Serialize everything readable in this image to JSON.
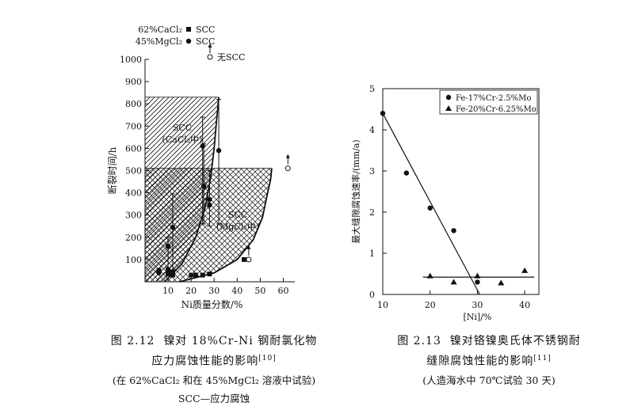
{
  "chart_data": [
    {
      "type": "scatter",
      "figure_label": "图 2.12",
      "title_lines": [
        "镍对 18%Cr-Ni 钢耐氯化物",
        "应力腐蚀性能的影响"
      ],
      "ref": "[10]",
      "note": "(在 62%CaCl₂ 和在 45%MgCl₂ 溶液中试验)",
      "footnote": "SCC—应力腐蚀",
      "xlabel": "Ni质量分数/%",
      "ylabel": "断裂时间/h",
      "xlim": [
        0,
        65
      ],
      "ylim": [
        0,
        1000
      ],
      "xticks": [
        10,
        20,
        30,
        40,
        50,
        60
      ],
      "yticks": [
        100,
        200,
        300,
        400,
        500,
        600,
        700,
        800,
        900,
        1000
      ],
      "legend": [
        {
          "solution": "62%CaCl₂",
          "marker": "square",
          "label": "SCC"
        },
        {
          "solution": "45%MgCl₂",
          "marker": "filled-circle",
          "label": "SCC"
        },
        {
          "solution": "",
          "marker": "open-circle",
          "label": "无SCC"
        }
      ],
      "regions": [
        {
          "label_lines": [
            "SCC",
            "(CaCl₂中)"
          ],
          "hatch": "diagonal",
          "boundary_x": [
            8.5,
            16,
            22,
            26,
            28.5,
            30,
            31,
            32
          ],
          "boundary_y": [
            0,
            80,
            200,
            330,
            470,
            600,
            720,
            830
          ],
          "top": 830
        },
        {
          "label_lines": [
            "SCC",
            "(MgCl₂中)"
          ],
          "hatch": "crosshatch",
          "boundary_x": [
            15,
            30,
            40,
            47,
            51,
            53,
            54.5,
            55
          ],
          "boundary_y": [
            0,
            40,
            100,
            190,
            290,
            390,
            460,
            510
          ],
          "top": 510
        }
      ],
      "error_bars": [
        {
          "x": 10,
          "low": 40,
          "high": 200,
          "mid": 160
        },
        {
          "x": 12,
          "low": 40,
          "high": 395,
          "mid": 245
        },
        {
          "x": 25,
          "low": 260,
          "high": 740,
          "mid": 610
        },
        {
          "x": 25.5,
          "low": 260,
          "high": 620,
          "mid": 430
        },
        {
          "x": 28,
          "low": 250,
          "high": 500,
          "mid": 345
        },
        {
          "x": 32,
          "low": 260,
          "high": 820,
          "mid": 590
        }
      ],
      "series": [
        {
          "name": "SCC (CaCl₂)",
          "marker": "square",
          "x": [
            6,
            10,
            10,
            12,
            12,
            22,
            25,
            28,
            43
          ],
          "y": [
            50,
            35,
            55,
            30,
            45,
            30,
            30,
            35,
            100
          ]
        },
        {
          "name": "SCC (MgCl₂)",
          "marker": "filled-circle",
          "x": [
            6,
            10,
            12,
            25,
            25.5,
            28,
            32,
            28,
            20
          ],
          "y": [
            40,
            160,
            245,
            610,
            430,
            345,
            590,
            370,
            30
          ]
        },
        {
          "name": "无SCC",
          "marker": "open-circle",
          "x": [
            45,
            62
          ],
          "y": [
            100,
            510
          ]
        }
      ]
    },
    {
      "type": "scatter",
      "figure_label": "图 2.13",
      "title_lines": [
        "镍对铬镍奥氏体不锈钢耐",
        "缝隙腐蚀性能的影响"
      ],
      "ref": "[11]",
      "note": "(人造海水中 70℃试验 30 天)",
      "xlabel": "[Ni]/%",
      "ylabel": "最大缝隙腐蚀速率/(mm/a)",
      "xlim": [
        10,
        43
      ],
      "ylim": [
        0,
        5
      ],
      "xticks": [
        10,
        20,
        30,
        40
      ],
      "yticks": [
        0,
        1,
        2,
        3,
        4,
        5
      ],
      "legend_position": "top-right",
      "series": [
        {
          "name": "Fe-17%Cr-2.5%Mo",
          "marker": "filled-circle",
          "x": [
            10,
            15,
            20,
            25,
            30
          ],
          "y": [
            4.4,
            2.95,
            2.1,
            1.55,
            0.3
          ]
        },
        {
          "name": "Fe-20%Cr-6.25%Mo",
          "marker": "triangle",
          "x": [
            20,
            25,
            30,
            35,
            40
          ],
          "y": [
            0.45,
            0.3,
            0.45,
            0.28,
            0.58
          ]
        }
      ],
      "trend_lines": [
        {
          "x": [
            10,
            30.5
          ],
          "y": [
            4.4,
            0
          ]
        },
        {
          "x": [
            18.5,
            42
          ],
          "y": [
            0.42,
            0.42
          ]
        }
      ]
    }
  ]
}
